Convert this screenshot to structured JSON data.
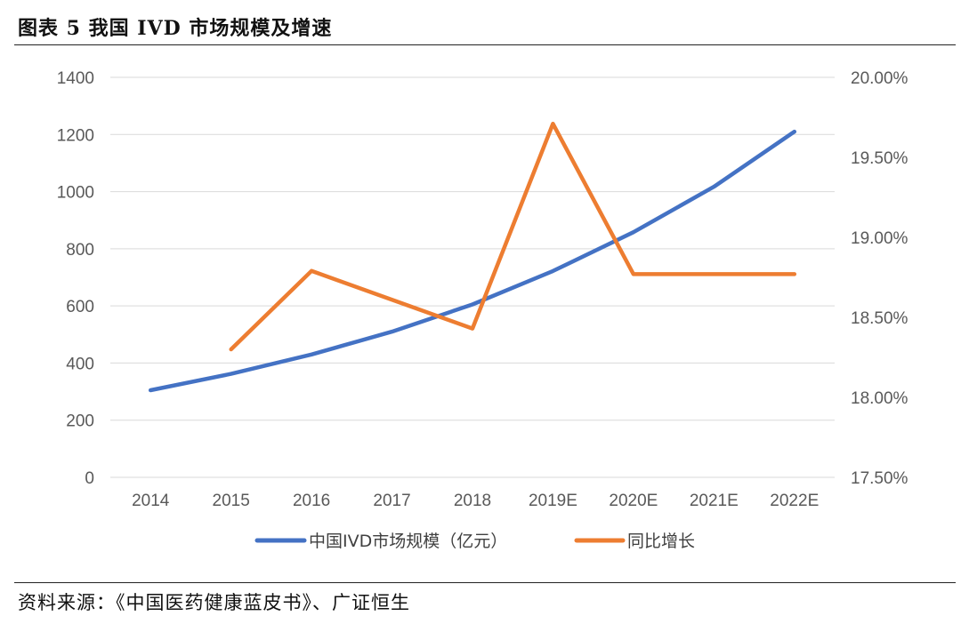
{
  "figure": {
    "title": "图表 5  我国 IVD 市场规模及增速",
    "source": "资料来源：《中国医药健康蓝皮书》、广证恒生"
  },
  "chart_data": {
    "type": "line",
    "categories": [
      "2014",
      "2015",
      "2016",
      "2017",
      "2018",
      "2019E",
      "2020E",
      "2021E",
      "2022E"
    ],
    "series": [
      {
        "name": "中国IVD市场规模（亿元）",
        "axis": "left",
        "color": "#4472C4",
        "values": [
          305,
          362,
          430,
          510,
          605,
          722,
          858,
          1017,
          1210
        ]
      },
      {
        "name": "同比增长",
        "axis": "right",
        "color": "#ED7D31",
        "values": [
          null,
          18.3,
          18.79,
          18.61,
          18.43,
          19.71,
          18.77,
          18.77,
          18.77
        ]
      }
    ],
    "y_left": {
      "min": 0,
      "max": 1400,
      "ticks": [
        "0",
        "200",
        "400",
        "600",
        "800",
        "1000",
        "1200",
        "1400"
      ]
    },
    "y_right": {
      "min": 17.5,
      "max": 20.0,
      "unit": "%",
      "ticks": [
        "17.50%",
        "18.00%",
        "18.50%",
        "19.00%",
        "19.50%",
        "20.00%"
      ]
    },
    "grid": "horizontal",
    "legend_position": "bottom"
  }
}
